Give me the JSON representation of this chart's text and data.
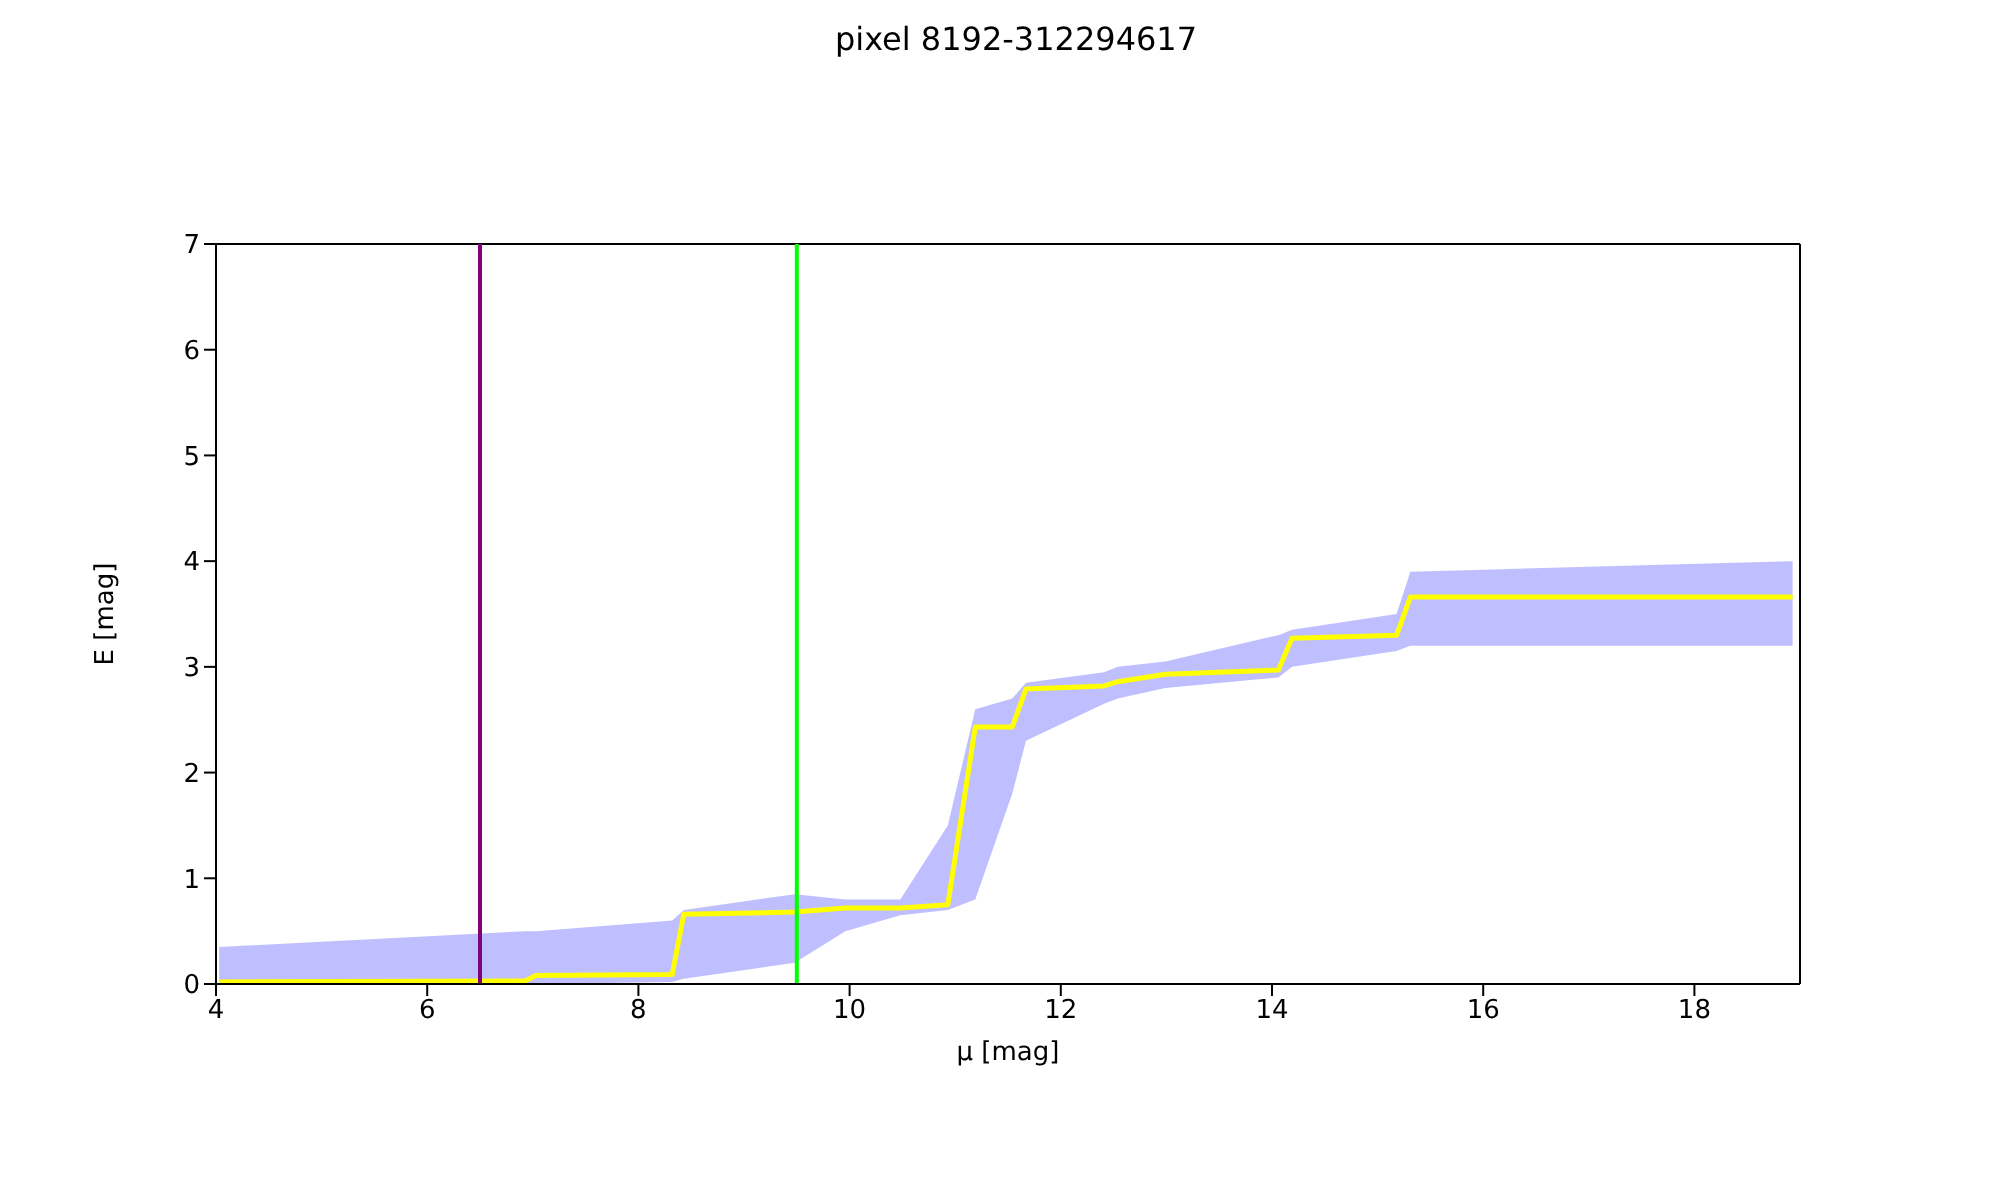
{
  "chart_data": {
    "type": "line",
    "title": "pixel 8192-312294617",
    "xlabel": "μ [mag]",
    "ylabel": "E [mag]",
    "x": [
      4.03,
      6.93,
      7.03,
      8.32,
      8.43,
      9.48,
      9.96,
      10.48,
      10.93,
      11.19,
      11.54,
      11.67,
      12.41,
      12.54,
      12.99,
      14.06,
      14.19,
      15.18,
      15.31,
      18.93
    ],
    "series": [
      {
        "color": "#ffff00",
        "values": [
          0.02,
          0.03,
          0.08,
          0.09,
          0.66,
          0.68,
          0.72,
          0.72,
          0.75,
          2.43,
          2.43,
          2.79,
          2.82,
          2.86,
          2.93,
          2.97,
          3.27,
          3.3,
          3.66,
          3.66
        ],
        "lower": [
          0,
          0,
          0,
          0.02,
          0.05,
          0.2,
          0.5,
          0.65,
          0.7,
          0.8,
          1.8,
          2.3,
          2.65,
          2.7,
          2.8,
          2.9,
          3.0,
          3.15,
          3.2,
          3.2
        ],
        "upper": [
          0.35,
          0.5,
          0.5,
          0.6,
          0.7,
          0.85,
          0.8,
          0.8,
          1.5,
          2.6,
          2.7,
          2.85,
          2.95,
          3.0,
          3.05,
          3.3,
          3.35,
          3.5,
          3.9,
          4.0
        ]
      }
    ],
    "xlim": [
      4,
      19
    ],
    "xticks": [
      4,
      6,
      8,
      10,
      12,
      14,
      16,
      18
    ],
    "ylim": [
      0,
      7
    ],
    "yticks": [
      0,
      1,
      2,
      3,
      4,
      5,
      6,
      7
    ],
    "ref_lines": [
      {
        "axis": "x",
        "value": 6.5,
        "color": "#800080"
      },
      {
        "axis": "x",
        "value": 9.5,
        "color": "#00ff00"
      }
    ],
    "grid": false,
    "legend": false
  }
}
